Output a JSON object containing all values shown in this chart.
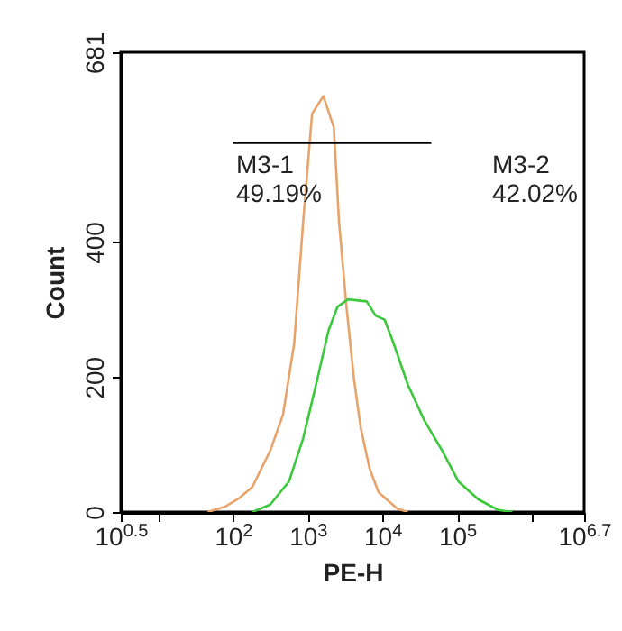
{
  "chart_data": {
    "type": "line",
    "xlabel": "PE-H",
    "ylabel": "Count",
    "log": "x",
    "grid": false,
    "legend": false,
    "marker": "none",
    "xlim": [
      3.1623,
      5011872
    ],
    "ylim": [
      0,
      681
    ],
    "xticks": [
      {
        "value": 3.1623,
        "label": "10$^{0.5}$"
      },
      {
        "value": 10,
        "label": null
      },
      {
        "value": 100,
        "label": "10$^{2}$"
      },
      {
        "value": 1000,
        "label": "10$^{3}$"
      },
      {
        "value": 10000,
        "label": "10$^{4}$"
      },
      {
        "value": 100000,
        "label": "10$^{5}$"
      },
      {
        "value": 1000000,
        "label": null
      },
      {
        "value": 5011872,
        "label": "10$^{6.7}$"
      }
    ],
    "yticks": [
      0,
      200,
      400,
      681
    ],
    "series": [
      {
        "color": "#e8a36a",
        "x": [
          46,
          79,
          123,
          182,
          316,
          468,
          661,
          871,
          1148,
          1622,
          2239,
          2630,
          3311,
          4169,
          5129,
          6761,
          8913,
          15849,
          21878
        ],
        "values": [
          0,
          8,
          21,
          37,
          91,
          144,
          250,
          430,
          590,
          616,
          570,
          430,
          304,
          197,
          125,
          64,
          29,
          5,
          0
        ]
      },
      {
        "color": "#3cc83c",
        "x": [
          182,
          316,
          562,
          871,
          1349,
          1905,
          2512,
          3467,
          6166,
          8128,
          10715,
          14125,
          21878,
          36308,
          63096,
          104713,
          190546,
          354813,
          549541
        ],
        "values": [
          0,
          11,
          45,
          109,
          197,
          269,
          304,
          315,
          312,
          291,
          285,
          250,
          189,
          136,
          91,
          45,
          19,
          3,
          0
        ]
      },
      {
        "color": "#000000",
        "x": [
          100,
          6460,
          45200
        ],
        "values": [
          547,
          547,
          547
        ]
      }
    ],
    "annotations": [
      "M3-1",
      "49.19%",
      "M3-2",
      "42.02%"
    ]
  }
}
